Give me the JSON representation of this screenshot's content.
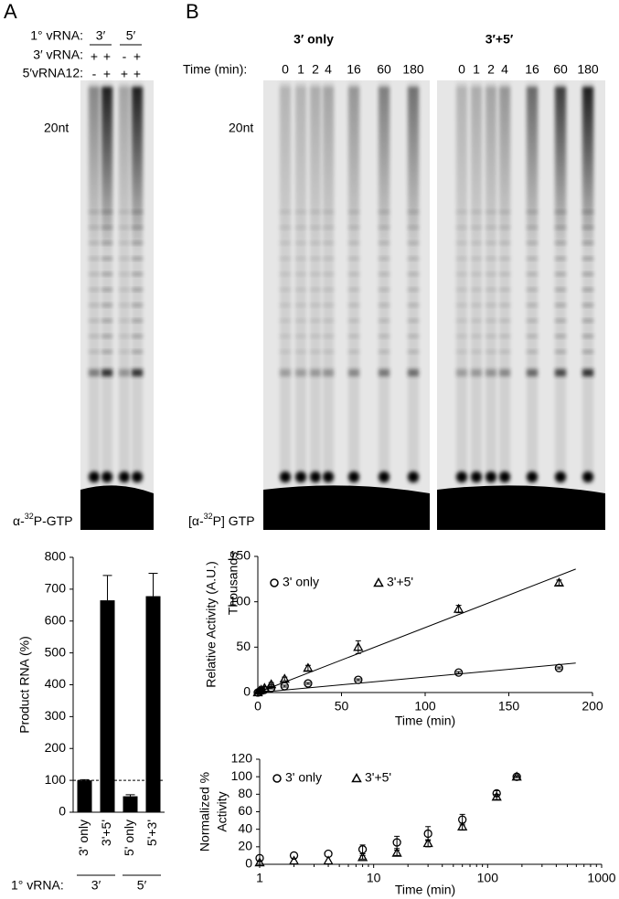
{
  "panel_labels": [
    "A",
    "B"
  ],
  "gel_a": {
    "row_labels": [
      "1° vRNA:",
      "3′ vRNA:",
      "5′vRNA12:"
    ],
    "groups": [
      "3′",
      "5′"
    ],
    "row_3": [
      "+",
      "+",
      "-",
      "+"
    ],
    "row_5": [
      "-",
      "+",
      "+",
      "+"
    ],
    "marker": "20nt",
    "label": [
      "α-",
      "32",
      "P-GTP"
    ]
  },
  "gel_b": {
    "titles": [
      "3′ only",
      "3′+5′"
    ],
    "time_label": "Time (min):",
    "lanes": [
      "0",
      "1",
      "2",
      "4",
      "16",
      "60",
      "180"
    ],
    "marker": "20nt",
    "label": [
      "[α-",
      "32",
      "P] GTP"
    ]
  },
  "chart_data": [
    {
      "type": "bar",
      "ylabel": "Product RNA (%)",
      "categories": [
        "3' only",
        "3'+5'",
        "5' only",
        "5'+3'"
      ],
      "values": [
        100,
        665,
        50,
        678
      ],
      "errors": [
        2,
        78,
        5,
        72
      ],
      "color": "#000000",
      "ylim": [
        0,
        800
      ],
      "yticks": [
        0,
        100,
        200,
        300,
        400,
        500,
        600,
        700,
        800
      ],
      "reference_line": 100,
      "group_title": "1° vRNA:",
      "groups": [
        "3′",
        "5′"
      ]
    },
    {
      "type": "scatter",
      "ylabel": "Relative Activity (A.U.)",
      "ylabel2": "Thousands",
      "xlabel": "Time (min)",
      "x": [
        0,
        1,
        2,
        4,
        8,
        16,
        30,
        60,
        120,
        180
      ],
      "series": [
        {
          "name": "3' only",
          "marker": "circle",
          "color": "#000000",
          "values": [
            0,
            1,
            2,
            3,
            5,
            7,
            10,
            14,
            22,
            27
          ],
          "errors": [
            0,
            0,
            0,
            0,
            1,
            1,
            1,
            1,
            1,
            1
          ]
        },
        {
          "name": "3'+5'",
          "marker": "triangle",
          "color": "#000000",
          "values": [
            0,
            2,
            3,
            5,
            9,
            15,
            27,
            50,
            92,
            121
          ],
          "errors": [
            0,
            1,
            1,
            1,
            2,
            2,
            3,
            7,
            4,
            3
          ]
        }
      ],
      "trendline": true,
      "xlim": [
        0,
        200
      ],
      "xticks": [
        0,
        50,
        100,
        150,
        200
      ],
      "ylim": [
        0,
        150
      ],
      "yticks": [
        0,
        50,
        100,
        150
      ],
      "log_x": false
    },
    {
      "type": "scatter",
      "ylabel": "Normalized %",
      "ylabel2": "Activity",
      "xlabel": "Time (min)",
      "x": [
        1,
        2,
        4,
        8,
        16,
        30,
        60,
        120,
        180
      ],
      "series": [
        {
          "name": "3' only",
          "marker": "circle",
          "color": "#000000",
          "values": [
            7,
            10,
            12,
            17,
            25,
            35,
            51,
            81,
            100
          ],
          "errors": [
            0,
            0,
            0,
            5,
            7,
            8,
            6,
            3,
            1
          ]
        },
        {
          "name": "3'+5'",
          "marker": "triangle",
          "color": "#000000",
          "values": [
            2,
            4,
            4,
            8,
            13,
            24,
            43,
            77,
            100
          ],
          "errors": [
            0,
            0,
            0,
            2,
            3,
            4,
            4,
            3,
            1
          ]
        }
      ],
      "trendline": false,
      "xlim": [
        1,
        1000
      ],
      "xticks": [
        1,
        10,
        100,
        1000
      ],
      "ylim": [
        0,
        120
      ],
      "yticks": [
        0,
        20,
        40,
        60,
        80,
        100,
        120
      ],
      "log_x": true
    }
  ]
}
